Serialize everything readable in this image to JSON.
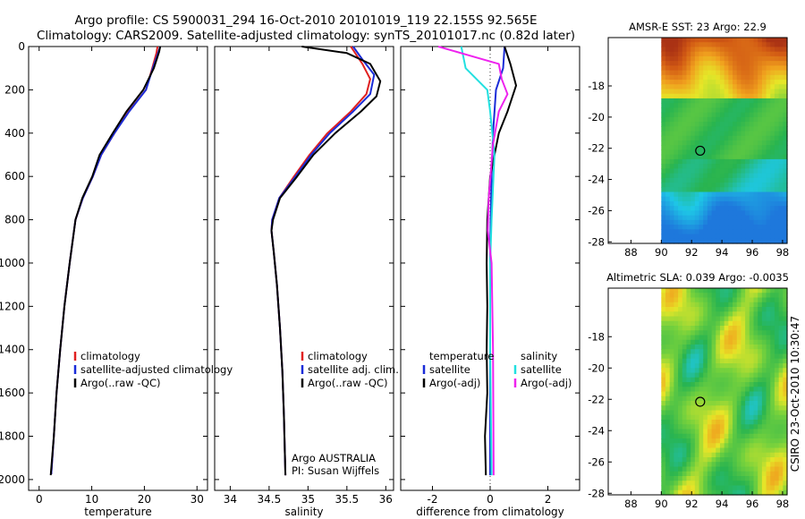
{
  "title_line1": "Argo profile: CS 5900031_294 16-Oct-2010 20101019_119 22.155S 92.565E",
  "title_line2": "Climatology: CARS2009. Satellite-adjusted climatology: synTS_20101017.nc (0.82d later)",
  "credit": "CSIRO 23-Oct-2010 10:30:47",
  "colors": {
    "clim": "#e02020",
    "sat": "#1a2cd8",
    "argo": "#000000",
    "sal_sat": "#22e0e0",
    "sal_argo": "#ee22ee"
  },
  "chart_data": [
    {
      "id": "temperature",
      "type": "line",
      "xlabel": "temperature",
      "ylabel": "",
      "xlim": [
        -2,
        32
      ],
      "ylim": [
        2050,
        0
      ],
      "xticks": [
        "0",
        "10",
        "20",
        "30"
      ],
      "xtick_values": [
        0,
        10,
        20,
        30
      ],
      "yticks": [
        "0",
        "200",
        "400",
        "600",
        "800",
        "1000",
        "1200",
        "1400",
        "1600",
        "1800",
        "2000"
      ],
      "ytick_values": [
        0,
        200,
        400,
        600,
        800,
        1000,
        1200,
        1400,
        1600,
        1800,
        2000
      ],
      "legend": [
        "climatology",
        "satellite-adjusted climatology",
        "Argo(..raw -QC)"
      ],
      "series": [
        {
          "name": "climatology",
          "color": "#e02020",
          "points": [
            [
              22.5,
              0
            ],
            [
              22.3,
              30
            ],
            [
              21.5,
              100
            ],
            [
              20.3,
              200
            ],
            [
              17,
              300
            ],
            [
              14.3,
              400
            ],
            [
              11.8,
              500
            ],
            [
              10.2,
              600
            ],
            [
              8.3,
              700
            ],
            [
              6.9,
              800
            ],
            [
              5.8,
              1000
            ],
            [
              4.8,
              1200
            ],
            [
              4,
              1400
            ],
            [
              3.3,
              1600
            ],
            [
              2.8,
              1800
            ],
            [
              2.3,
              1975
            ]
          ]
        },
        {
          "name": "satellite-adjusted climatology",
          "color": "#1a2cd8",
          "points": [
            [
              23,
              0
            ],
            [
              22.6,
              30
            ],
            [
              21.6,
              100
            ],
            [
              20.3,
              200
            ],
            [
              17.1,
              300
            ],
            [
              14.3,
              400
            ],
            [
              11.8,
              500
            ],
            [
              10.2,
              600
            ],
            [
              8.3,
              700
            ],
            [
              6.9,
              800
            ],
            [
              5.8,
              1000
            ],
            [
              4.8,
              1200
            ],
            [
              4,
              1400
            ],
            [
              3.3,
              1600
            ],
            [
              2.8,
              1800
            ],
            [
              2.3,
              1975
            ]
          ]
        },
        {
          "name": "Argo(..raw -QC)",
          "color": "#000000",
          "points": [
            [
              23,
              0
            ],
            [
              22.8,
              25
            ],
            [
              21.8,
              100
            ],
            [
              19.8,
              200
            ],
            [
              16.6,
              300
            ],
            [
              14,
              400
            ],
            [
              11.5,
              500
            ],
            [
              10.1,
              600
            ],
            [
              8.2,
              700
            ],
            [
              6.9,
              800
            ],
            [
              5.8,
              1000
            ],
            [
              4.8,
              1200
            ],
            [
              4,
              1400
            ],
            [
              3.3,
              1600
            ],
            [
              2.8,
              1800
            ],
            [
              2.2,
              1980
            ]
          ]
        }
      ]
    },
    {
      "id": "salinity",
      "type": "line",
      "xlabel": "salinity",
      "ylabel": "",
      "xlim": [
        33.8,
        36.1
      ],
      "ylim": [
        2050,
        0
      ],
      "xticks": [
        "34",
        "34.5",
        "35",
        "35.5",
        "36"
      ],
      "xtick_values": [
        34,
        34.5,
        35,
        35.5,
        36
      ],
      "legend": [
        "climatology",
        "satellite adj. clim.",
        "Argo(..raw -QC)"
      ],
      "annotations": [
        "Argo AUSTRALIA",
        "PI: Susan Wijffels"
      ],
      "series": [
        {
          "name": "climatology",
          "color": "#e02020",
          "points": [
            [
              35.55,
              0
            ],
            [
              35.7,
              80
            ],
            [
              35.8,
              150
            ],
            [
              35.75,
              220
            ],
            [
              35.55,
              300
            ],
            [
              35.25,
              400
            ],
            [
              35.02,
              500
            ],
            [
              34.82,
              600
            ],
            [
              34.63,
              700
            ],
            [
              34.54,
              800
            ],
            [
              34.53,
              850
            ],
            [
              34.56,
              950
            ],
            [
              34.6,
              1100
            ],
            [
              34.64,
              1300
            ],
            [
              34.67,
              1500
            ],
            [
              34.69,
              1700
            ],
            [
              34.71,
              1980
            ]
          ]
        },
        {
          "name": "satellite adj. clim.",
          "color": "#1a2cd8",
          "points": [
            [
              35.58,
              0
            ],
            [
              35.7,
              60
            ],
            [
              35.85,
              130
            ],
            [
              35.8,
              220
            ],
            [
              35.58,
              300
            ],
            [
              35.28,
              400
            ],
            [
              35.04,
              500
            ],
            [
              34.84,
              600
            ],
            [
              34.63,
              700
            ],
            [
              34.54,
              800
            ],
            [
              34.53,
              850
            ],
            [
              34.56,
              950
            ],
            [
              34.6,
              1100
            ],
            [
              34.64,
              1300
            ],
            [
              34.67,
              1500
            ],
            [
              34.69,
              1700
            ],
            [
              34.71,
              1980
            ]
          ]
        },
        {
          "name": "Argo(..raw -QC)",
          "color": "#000000",
          "points": [
            [
              34.92,
              0
            ],
            [
              35.5,
              30
            ],
            [
              35.8,
              80
            ],
            [
              35.93,
              160
            ],
            [
              35.88,
              230
            ],
            [
              35.68,
              300
            ],
            [
              35.35,
              400
            ],
            [
              35.07,
              500
            ],
            [
              34.86,
              600
            ],
            [
              34.64,
              700
            ],
            [
              34.55,
              800
            ],
            [
              34.53,
              850
            ],
            [
              34.56,
              950
            ],
            [
              34.6,
              1100
            ],
            [
              34.64,
              1300
            ],
            [
              34.67,
              1500
            ],
            [
              34.69,
              1700
            ],
            [
              34.71,
              1980
            ]
          ]
        }
      ]
    },
    {
      "id": "difference",
      "type": "line",
      "xlabel": "difference from climatology",
      "ylabel": "",
      "xlim": [
        -3.1,
        3.1
      ],
      "ylim": [
        2050,
        0
      ],
      "xticks": [
        "-2",
        "0",
        "2"
      ],
      "xtick_values": [
        -2,
        0,
        2
      ],
      "legend_temperature_header": "temperature",
      "legend_salinity_header": "salinity",
      "legend": [
        "satellite",
        "Argo(-adj)",
        "satellite",
        "Argo(-adj)"
      ],
      "series": [
        {
          "name": "temperature satellite",
          "color": "#1a2cd8",
          "points": [
            [
              0.5,
              0
            ],
            [
              0.45,
              100
            ],
            [
              0.2,
              200
            ],
            [
              0.1,
              400
            ],
            [
              0.05,
              600
            ],
            [
              0.02,
              800
            ],
            [
              0,
              1000
            ],
            [
              0,
              1400
            ],
            [
              0,
              1980
            ]
          ]
        },
        {
          "name": "temperature Argo(-adj)",
          "color": "#000000",
          "points": [
            [
              0.5,
              0
            ],
            [
              0.7,
              80
            ],
            [
              0.9,
              180
            ],
            [
              0.6,
              300
            ],
            [
              0.3,
              400
            ],
            [
              0,
              600
            ],
            [
              -0.1,
              800
            ],
            [
              -0.12,
              1000
            ],
            [
              -0.1,
              1200
            ],
            [
              -0.12,
              1400
            ],
            [
              -0.1,
              1600
            ],
            [
              -0.18,
              1800
            ],
            [
              -0.15,
              1980
            ]
          ]
        },
        {
          "name": "salinity satellite",
          "color": "#22e0e0",
          "points": [
            [
              -1,
              0
            ],
            [
              -0.85,
              100
            ],
            [
              -0.1,
              200
            ],
            [
              0,
              300
            ],
            [
              0.15,
              500
            ],
            [
              0.05,
              800
            ],
            [
              0,
              1000
            ],
            [
              0,
              1400
            ],
            [
              0.05,
              1980
            ]
          ]
        },
        {
          "name": "salinity Argo(-adj)",
          "color": "#ee22ee",
          "points": [
            [
              -1.8,
              0
            ],
            [
              -0.5,
              50
            ],
            [
              0.3,
              80
            ],
            [
              0.4,
              150
            ],
            [
              0.6,
              220
            ],
            [
              0.3,
              300
            ],
            [
              0.1,
              450
            ],
            [
              -0.05,
              700
            ],
            [
              -0.08,
              850
            ],
            [
              0.05,
              1000
            ],
            [
              0.1,
              1400
            ],
            [
              0.12,
              1980
            ]
          ]
        }
      ]
    },
    {
      "id": "sst_map",
      "type": "heatmap",
      "title": "AMSR-E SST: 23 Argo: 22.9",
      "xlim": [
        86.5,
        98.3
      ],
      "ylim": [
        -28.1,
        -14.9
      ],
      "xticks": [
        "88",
        "90",
        "92",
        "94",
        "96",
        "98"
      ],
      "xtick_values": [
        88,
        90,
        92,
        94,
        96,
        98
      ],
      "yticks": [
        "-18",
        "-20",
        "-22",
        "-24",
        "-26",
        "-28"
      ],
      "ytick_values": [
        -18,
        -20,
        -22,
        -24,
        -26,
        -28
      ],
      "data_lon_start": 90,
      "marker": [
        92.565,
        -22.155
      ]
    },
    {
      "id": "sla_map",
      "type": "heatmap",
      "title": "Altimetric SLA: 0.039 Argo: -0.0035",
      "xlim": [
        86.5,
        98.3
      ],
      "ylim": [
        -28.1,
        -14.9
      ],
      "xticks": [
        "88",
        "90",
        "92",
        "94",
        "96",
        "98"
      ],
      "xtick_values": [
        88,
        90,
        92,
        94,
        96,
        98
      ],
      "yticks": [
        "-18",
        "-20",
        "-22",
        "-24",
        "-26",
        "-28"
      ],
      "ytick_values": [
        -18,
        -20,
        -22,
        -24,
        -26,
        -28
      ],
      "data_lon_start": 90,
      "marker": [
        92.565,
        -22.155
      ]
    }
  ]
}
